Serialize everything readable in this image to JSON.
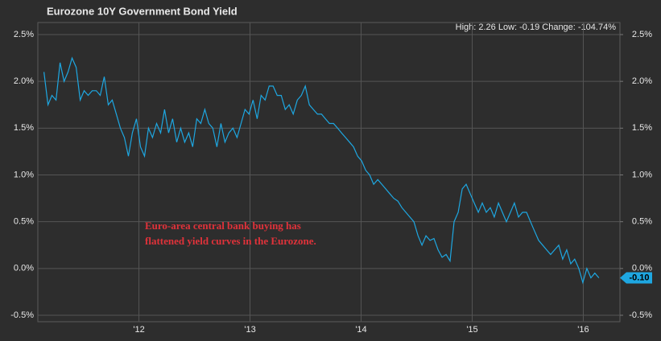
{
  "chart_data": {
    "type": "line",
    "title": "Eurozone 10Y Government Bond Yield",
    "subtitle": "High: 2.26 Low: -0.19 Change: -104.74%",
    "annotation": [
      "Euro-area central bank buying has",
      "flattened yield curves in the Eurozone."
    ],
    "annotation_color": "#e0323a",
    "xlim": [
      2011.09,
      2016.33
    ],
    "xticks": [
      {
        "value": 2012,
        "label": "'12"
      },
      {
        "value": 2013,
        "label": "'13"
      },
      {
        "value": 2014,
        "label": "'14"
      },
      {
        "value": 2015,
        "label": "'15"
      },
      {
        "value": 2016,
        "label": "'16"
      }
    ],
    "ylim": [
      -0.5,
      2.5
    ],
    "yticks": [
      {
        "value": 2.5,
        "label": "2.5%"
      },
      {
        "value": 2.0,
        "label": "2.0%"
      },
      {
        "value": 1.5,
        "label": "1.5%"
      },
      {
        "value": 1.0,
        "label": "1.0%"
      },
      {
        "value": 0.5,
        "label": "0.5%"
      },
      {
        "value": 0.0,
        "label": "0.0%"
      },
      {
        "value": -0.5,
        "label": "-0.5%"
      }
    ],
    "y2lim": [
      -0.5,
      2.5
    ],
    "y2ticks": [
      {
        "value": 2.5,
        "label": "2.5%"
      },
      {
        "value": 2.0,
        "label": "2.0%"
      },
      {
        "value": 1.5,
        "label": "1.5%"
      },
      {
        "value": 1.0,
        "label": "1.0%"
      },
      {
        "value": 0.5,
        "label": "0.5%"
      },
      {
        "value": 0.0,
        "label": "0.0%"
      },
      {
        "value": -0.5,
        "label": "-0.5%"
      }
    ],
    "grid": true,
    "x": [
      2011.145,
      2011.181,
      2011.217,
      2011.254,
      2011.29,
      2011.326,
      2011.362,
      2011.398,
      2011.435,
      2011.471,
      2011.507,
      2011.543,
      2011.579,
      2011.616,
      2011.652,
      2011.688,
      2011.724,
      2011.76,
      2011.797,
      2011.833,
      2011.869,
      2011.905,
      2011.941,
      2011.978,
      2012.014,
      2012.05,
      2012.086,
      2012.122,
      2012.159,
      2012.195,
      2012.231,
      2012.267,
      2012.303,
      2012.34,
      2012.376,
      2012.412,
      2012.448,
      2012.484,
      2012.521,
      2012.557,
      2012.593,
      2012.629,
      2012.665,
      2012.702,
      2012.738,
      2012.774,
      2012.81,
      2012.846,
      2012.883,
      2012.919,
      2012.955,
      2012.991,
      2013.027,
      2013.064,
      2013.1,
      2013.136,
      2013.172,
      2013.208,
      2013.245,
      2013.281,
      2013.317,
      2013.353,
      2013.389,
      2013.426,
      2013.462,
      2013.498,
      2013.534,
      2013.57,
      2013.607,
      2013.643,
      2013.679,
      2013.715,
      2013.751,
      2013.788,
      2013.824,
      2013.86,
      2013.896,
      2013.932,
      2013.969,
      2014.005,
      2014.041,
      2014.077,
      2014.113,
      2014.15,
      2014.186,
      2014.222,
      2014.258,
      2014.294,
      2014.331,
      2014.367,
      2014.403,
      2014.439,
      2014.475,
      2014.512,
      2014.548,
      2014.584,
      2014.62,
      2014.656,
      2014.693,
      2014.729,
      2014.765,
      2014.801,
      2014.837,
      2014.874,
      2014.91,
      2014.946,
      2014.982,
      2015.018,
      2015.055,
      2015.091,
      2015.127,
      2015.163,
      2015.199,
      2015.236,
      2015.272,
      2015.308,
      2015.344,
      2015.38,
      2015.417,
      2015.453,
      2015.489,
      2015.525,
      2015.561,
      2015.598,
      2015.634,
      2015.67,
      2015.706,
      2015.742,
      2015.779,
      2015.815,
      2015.851,
      2015.887,
      2015.923,
      2015.96,
      2015.996,
      2016.032,
      2016.068,
      2016.104,
      2016.141
    ],
    "series": [
      {
        "name": "Eurozone 10Y",
        "color": "#1ea7e1",
        "values": [
          2.1,
          1.75,
          1.85,
          1.8,
          2.2,
          2.0,
          2.1,
          2.25,
          2.15,
          1.8,
          1.9,
          1.85,
          1.9,
          1.9,
          1.85,
          2.05,
          1.75,
          1.8,
          1.65,
          1.5,
          1.4,
          1.2,
          1.45,
          1.6,
          1.3,
          1.2,
          1.5,
          1.4,
          1.55,
          1.45,
          1.7,
          1.45,
          1.6,
          1.35,
          1.5,
          1.35,
          1.45,
          1.3,
          1.6,
          1.55,
          1.7,
          1.55,
          1.5,
          1.3,
          1.55,
          1.35,
          1.45,
          1.5,
          1.4,
          1.55,
          1.7,
          1.65,
          1.8,
          1.6,
          1.85,
          1.8,
          1.95,
          1.95,
          1.85,
          1.85,
          1.7,
          1.75,
          1.65,
          1.8,
          1.85,
          1.95,
          1.75,
          1.7,
          1.65,
          1.65,
          1.6,
          1.55,
          1.55,
          1.5,
          1.45,
          1.4,
          1.35,
          1.3,
          1.2,
          1.15,
          1.05,
          1.0,
          0.9,
          0.95,
          0.9,
          0.85,
          0.8,
          0.75,
          0.72,
          0.65,
          0.6,
          0.55,
          0.5,
          0.35,
          0.25,
          0.35,
          0.3,
          0.32,
          0.2,
          0.12,
          0.15,
          0.08,
          0.5,
          0.6,
          0.85,
          0.9,
          0.8,
          0.7,
          0.6,
          0.7,
          0.6,
          0.65,
          0.55,
          0.7,
          0.6,
          0.5,
          0.6,
          0.7,
          0.55,
          0.6,
          0.6,
          0.5,
          0.4,
          0.3,
          0.25,
          0.2,
          0.15,
          0.2,
          0.25,
          0.1,
          0.2,
          0.05,
          0.1,
          0.0,
          -0.15,
          0.0,
          -0.1,
          -0.05,
          -0.1
        ],
        "value_labels": [
          null,
          null,
          null,
          null,
          null,
          null,
          null,
          null,
          null,
          null,
          null,
          null,
          null,
          null,
          null,
          null,
          null,
          null,
          null,
          null,
          null,
          null,
          null,
          null,
          null,
          null,
          null,
          null,
          null,
          null,
          null,
          null,
          null,
          null,
          null,
          null,
          null,
          null,
          null,
          null,
          null,
          null,
          null,
          null,
          null,
          null,
          null,
          null,
          null,
          null,
          null,
          null,
          null,
          null,
          null,
          null,
          null,
          null,
          null,
          null,
          null,
          null,
          null,
          null,
          null,
          null,
          null,
          null,
          null,
          null,
          null,
          null,
          null,
          null,
          null,
          null,
          null,
          null,
          null,
          null,
          null,
          null,
          null,
          null,
          null,
          null,
          null,
          null,
          null,
          null,
          null,
          null,
          null,
          null,
          null,
          null,
          null,
          null,
          null,
          null,
          null,
          null,
          null,
          null,
          null,
          null,
          null,
          null,
          null,
          null,
          null,
          null,
          null,
          null,
          null,
          null,
          null,
          null,
          null,
          null,
          null,
          null,
          null,
          null,
          null,
          null,
          null,
          null,
          null,
          null,
          null,
          null,
          null,
          null,
          null,
          null,
          null,
          null,
          "-0.10"
        ]
      }
    ]
  }
}
